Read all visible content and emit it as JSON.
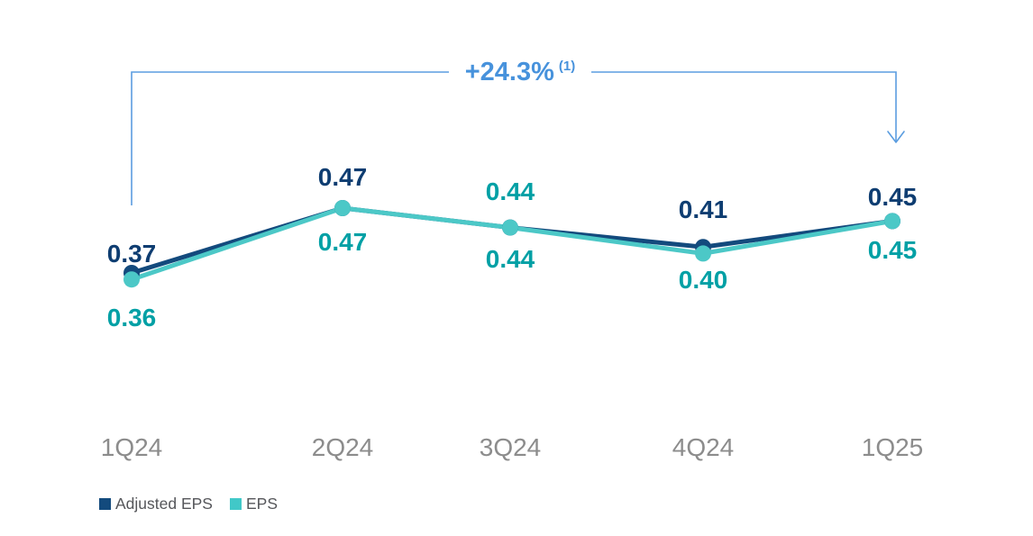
{
  "annotation": {
    "text": "+24.3%",
    "superscript": "(1)"
  },
  "legend": {
    "items": [
      {
        "label": "Adjusted EPS",
        "color": "#134a7d"
      },
      {
        "label": "EPS",
        "color": "#41c8c8"
      }
    ]
  },
  "chart_data": {
    "type": "line",
    "title": "",
    "categories": [
      "1Q24",
      "2Q24",
      "3Q24",
      "4Q24",
      "1Q25"
    ],
    "series": [
      {
        "name": "Adjusted EPS",
        "values": [
          0.37,
          0.47,
          0.44,
          0.41,
          0.45
        ],
        "line_color": "#134a7d",
        "label_color": "#0e3d71"
      },
      {
        "name": "EPS",
        "values": [
          0.36,
          0.47,
          0.44,
          0.4,
          0.45
        ],
        "line_color": "#4cc8c7",
        "label_color": "#00a0a5"
      }
    ],
    "data_labels": {
      "format": "0.00",
      "top_series_index": [
        0,
        0,
        1,
        0,
        0
      ]
    },
    "annotation": {
      "text": "+24.3%",
      "superscript": "(1)",
      "spans": "1Q24 to 1Q25",
      "text_color": "#4792dc",
      "bracket_color": "#5b9de0"
    },
    "x_axis": {
      "tick_color": "#8c8c8c"
    },
    "grid": false,
    "y_axis_visible": false,
    "legend_position": "bottom-left",
    "ylim": [
      0.3,
      0.5
    ]
  }
}
